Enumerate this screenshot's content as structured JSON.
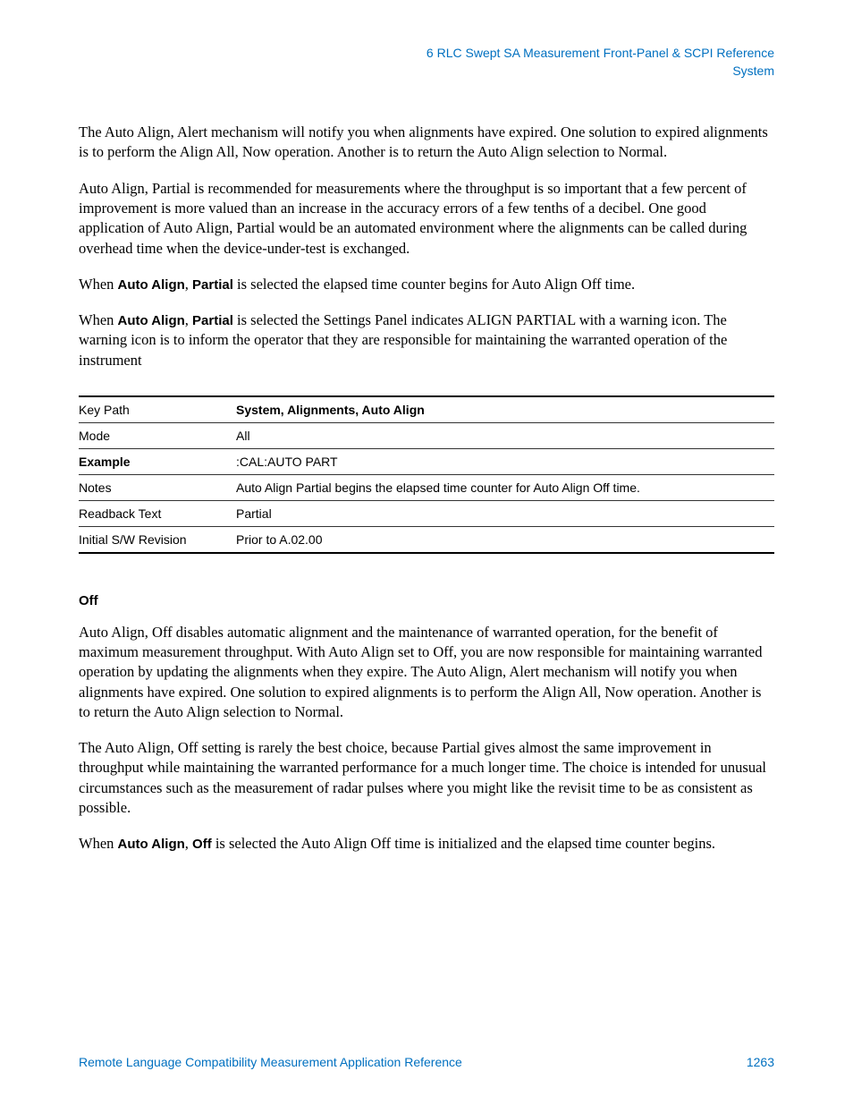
{
  "header": {
    "line1": "6  RLC Swept SA Measurement Front-Panel & SCPI Reference",
    "line2": "System"
  },
  "paragraphs": {
    "p1": "The Auto Align, Alert mechanism will notify you when alignments have expired. One solution to expired alignments is to perform the Align All, Now operation. Another is to return the Auto Align selection to Normal.",
    "p2": "Auto Align, Partial is recommended for measurements where the throughput is so important that a few percent of improvement is more valued than an increase in the accuracy errors of a few tenths of a decibel. One good application of Auto Align, Partial would be an automated environment where the alignments can be called during overhead time when the device-under-test is exchanged.",
    "p3_prefix": "When ",
    "p3_bold1": "Auto Align",
    "p3_sep": ", ",
    "p3_bold2": "Partial",
    "p3_rest": " is selected the elapsed time counter begins for Auto Align Off time.",
    "p4_prefix": "When ",
    "p4_bold1": "Auto Align",
    "p4_sep": ", ",
    "p4_bold2": "Partial",
    "p4_rest": " is selected the Settings Panel indicates ALIGN PARTIAL with a warning icon. The warning icon is to inform the operator that they are responsible for maintaining the warranted operation of the instrument"
  },
  "table": {
    "rows": [
      {
        "label": "Key Path",
        "label_bold": false,
        "value": "System, Alignments, Auto Align",
        "value_bold": true
      },
      {
        "label": "Mode",
        "label_bold": false,
        "value": "All",
        "value_bold": false
      },
      {
        "label": "Example",
        "label_bold": true,
        "value": ":CAL:AUTO PART",
        "value_bold": false
      },
      {
        "label": "Notes",
        "label_bold": false,
        "value": "Auto Align Partial begins the elapsed time counter for Auto Align Off time.",
        "value_bold": false
      },
      {
        "label": "Readback Text",
        "label_bold": false,
        "value": "Partial",
        "value_bold": false
      },
      {
        "label": "Initial S/W Revision",
        "label_bold": false,
        "value": "Prior to A.02.00",
        "value_bold": false
      }
    ]
  },
  "section2": {
    "heading": "Off",
    "p1": "Auto Align, Off disables automatic alignment and the maintenance of warranted operation, for the benefit of maximum measurement throughput. With Auto Align set to Off, you are now responsible for maintaining warranted operation by updating the alignments when they expire. The Auto Align, Alert mechanism will notify you when alignments have expired. One solution to expired alignments is to perform the Align All, Now operation. Another is to return the Auto Align selection to Normal.",
    "p2": "The Auto Align, Off setting is rarely the best choice, because Partial gives almost the same improvement in throughput while maintaining the warranted performance for a much longer time. The choice is intended for unusual circumstances such as the measurement of radar pulses where you might like the revisit time to be as consistent as possible.",
    "p3_prefix": "When ",
    "p3_bold1": "Auto Align",
    "p3_sep": ", ",
    "p3_bold2": "Off",
    "p3_rest": " is selected the Auto Align Off time is initialized and the elapsed time counter begins."
  },
  "footer": {
    "title": "Remote Language Compatibility Measurement Application Reference",
    "page": "1263"
  },
  "colors": {
    "link_blue": "#0070c0",
    "text_black": "#000000",
    "rule_gray": "#333333"
  }
}
